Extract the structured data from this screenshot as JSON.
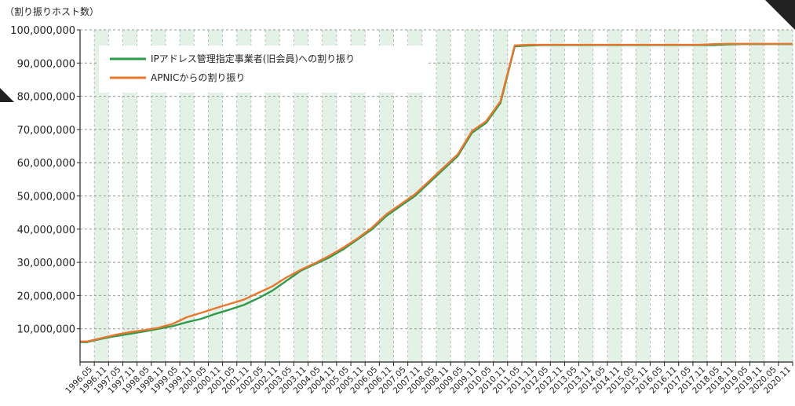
{
  "page": {
    "unit_label": "（割り振りホスト数）"
  },
  "chart_data": {
    "type": "line",
    "title": "",
    "xlabel": "",
    "ylabel": "（割り振りホスト数）",
    "ylim": [
      0,
      100000000
    ],
    "y_ticks": [
      10000000,
      20000000,
      30000000,
      40000000,
      50000000,
      60000000,
      70000000,
      80000000,
      90000000,
      100000000
    ],
    "y_tick_labels": [
      "10,000,000",
      "20,000,000",
      "30,000,000",
      "40,000,000",
      "50,000,000",
      "60,000,000",
      "70,000,000",
      "80,000,000",
      "90,000,000",
      "100,000,000"
    ],
    "grid": true,
    "legend": "top-left",
    "x_tick_labels": [
      "1996.05",
      "1996.11",
      "1997.05",
      "1997.11",
      "1998.05",
      "1998.11",
      "1999.05",
      "1999.11",
      "2000.05",
      "2000.11",
      "2001.05",
      "2001.11",
      "2002.05",
      "2002.11",
      "2003.05",
      "2003.11",
      "2004.05",
      "2004.11",
      "2005.05",
      "2005.11",
      "2006.05",
      "2006.11",
      "2007.05",
      "2007.11",
      "2008.05",
      "2008.11",
      "2009.05",
      "2009.11",
      "2010.05",
      "2010.11",
      "2011.05",
      "2011.11",
      "2012.05",
      "2012.11",
      "2013.05",
      "2013.11",
      "2014.05",
      "2014.11",
      "2015.05",
      "2015.11",
      "2016.05",
      "2016.11",
      "2017.05",
      "2017.11",
      "2018.05",
      "2018.11",
      "2019.05",
      "2019.11",
      "2020.05",
      "2020.11"
    ],
    "series": [
      {
        "name": "IPアドレス管理指定事業者(旧会員)への割り振り",
        "color": "#2e9a4a",
        "values": [
          6000000,
          7000000,
          7800000,
          8500000,
          9200000,
          10000000,
          10800000,
          12000000,
          13000000,
          14500000,
          15800000,
          17200000,
          19200000,
          21500000,
          24500000,
          27500000,
          29500000,
          31500000,
          34000000,
          37000000,
          40000000,
          44000000,
          47000000,
          50000000,
          54000000,
          58000000,
          62000000,
          69000000,
          72000000,
          78000000,
          95000000,
          95300000,
          95400000,
          95400000,
          95400000,
          95400000,
          95400000,
          95400000,
          95400000,
          95400000,
          95400000,
          95400000,
          95400000,
          95400000,
          95400000,
          95600000,
          95700000,
          95700000,
          95700000,
          95700000
        ]
      },
      {
        "name": "APNICからの割り振り",
        "color": "#e8772e",
        "values": [
          6200000,
          7200000,
          8200000,
          9000000,
          9600000,
          10300000,
          11500000,
          13500000,
          14800000,
          16200000,
          17500000,
          18800000,
          20800000,
          22800000,
          25500000,
          27800000,
          29800000,
          32000000,
          34500000,
          37300000,
          40500000,
          44500000,
          47500000,
          50500000,
          54500000,
          58500000,
          62500000,
          69500000,
          72500000,
          78500000,
          95300000,
          95500000,
          95500000,
          95500000,
          95500000,
          95500000,
          95500000,
          95500000,
          95500000,
          95500000,
          95500000,
          95500000,
          95500000,
          95500000,
          95700000,
          95800000,
          95800000,
          95800000,
          95800000,
          95800000
        ]
      }
    ]
  }
}
